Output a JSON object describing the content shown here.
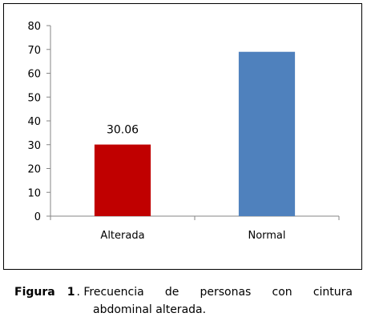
{
  "chart_data": {
    "type": "bar",
    "categories": [
      "Alterada",
      "Normal"
    ],
    "values": [
      30.06,
      69.0
    ],
    "data_labels": [
      "30.06",
      null
    ],
    "colors": [
      "#c00000",
      "#4f81bd"
    ],
    "ylim": [
      0,
      80
    ],
    "yticks": [
      "0",
      "10",
      "20",
      "30",
      "40",
      "50",
      "60",
      "70",
      "80"
    ],
    "grid": false,
    "legend": "none"
  },
  "caption": {
    "label": "Figura",
    "number": "1",
    "words": [
      ". Frecuencia",
      "de",
      "personas",
      "con",
      "cintura"
    ],
    "line2": "abdominal alterada."
  }
}
